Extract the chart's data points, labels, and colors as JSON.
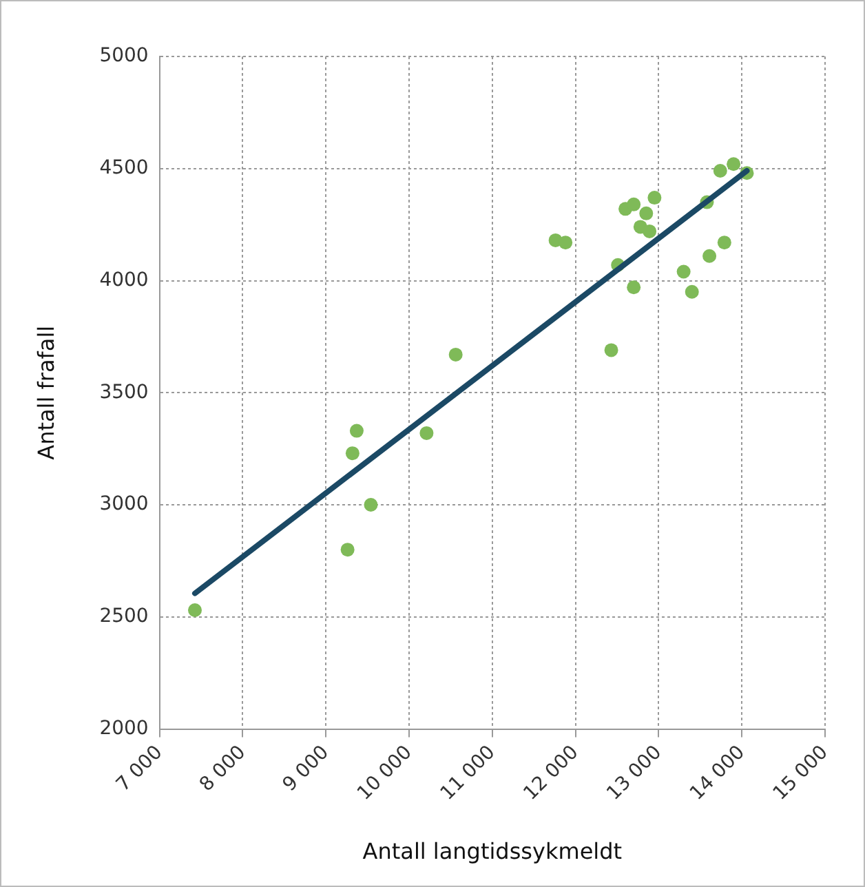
{
  "chart_data": {
    "type": "scatter",
    "xlabel": "Antall langtidssykmeldt",
    "ylabel": "Antall frafall",
    "xlim": [
      7000,
      15000
    ],
    "xticks": [
      {
        "value": 7000,
        "label": "7 000"
      },
      {
        "value": 8000,
        "label": "8 000"
      },
      {
        "value": 9000,
        "label": "9 000"
      },
      {
        "value": 10000,
        "label": "10 000"
      },
      {
        "value": 11000,
        "label": "11 000"
      },
      {
        "value": 12000,
        "label": "12 000"
      },
      {
        "value": 13000,
        "label": "13 000"
      },
      {
        "value": 14000,
        "label": "14 000"
      },
      {
        "value": 15000,
        "label": "15 000"
      }
    ],
    "ylim": [
      2000,
      5000
    ],
    "yticks": [
      2000,
      2500,
      3000,
      3500,
      4000,
      4500,
      5000
    ],
    "grid": true,
    "legend": false,
    "series": [
      {
        "color": "#7fba58",
        "marker": "circle",
        "x": [
          7425,
          9260,
          9320,
          9370,
          9540,
          10210,
          10560,
          11760,
          11880,
          12430,
          12510,
          12700,
          12600,
          12700,
          12850,
          12780,
          12890,
          12950,
          13300,
          13400,
          13580,
          13610,
          13790,
          13740,
          13900,
          14060
        ],
        "values": [
          2530,
          2800,
          3230,
          3330,
          3000,
          3320,
          3670,
          4180,
          4170,
          3690,
          4070,
          3970,
          4320,
          4340,
          4300,
          4240,
          4220,
          4370,
          4040,
          3950,
          4350,
          4110,
          4170,
          4490,
          4520,
          4480
        ]
      },
      {
        "type": "line",
        "color": "#1b4965",
        "marker": "none",
        "line_style": "solid",
        "x": [
          7425,
          14060
        ],
        "values": [
          2605,
          4490
        ]
      }
    ]
  }
}
